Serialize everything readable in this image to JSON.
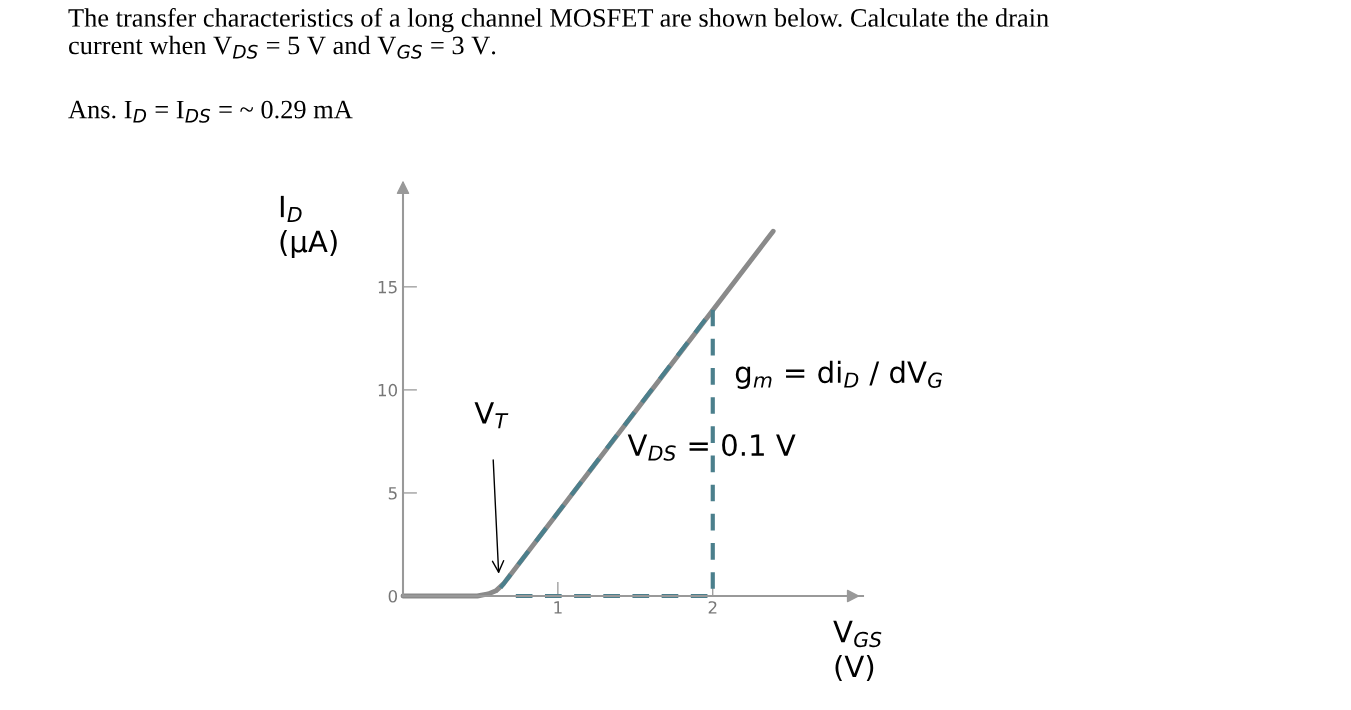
{
  "chart_data": {
    "type": "line",
    "title": "The transfer characteristics of a long channel MOSFET are shown below. Calculate the drain\ncurrent when V$_{DS}$ = 5 V and V$_{GS}$ = 3 V.",
    "subtitle": "Ans. I$_{D}$ = I$_{DS}$ = ~ 0.29 mA",
    "xlabel": "V$_{GS}$\n(V)",
    "ylabel": "I$_{D}$\n(μA)",
    "series": [
      {
        "color": "#8a8a8a",
        "x": [
          0,
          0.48,
          0.55,
          0.6,
          0.65,
          2.39
        ],
        "values": [
          0,
          0,
          0.1,
          0.25,
          0.6,
          17.7
        ],
        "line_style": "solid"
      },
      {
        "color": "#4b7f8c",
        "x": [
          0.63,
          2,
          2,
          0.69
        ],
        "values": [
          0.4,
          13.9,
          0,
          0
        ],
        "line_style": "dashed"
      }
    ],
    "annotations": [
      "V$_{T}$",
      "g$_{m}$ = di$_{D}$ / dV$_{G}$",
      "V$_{DS}$ = 0.1 V"
    ],
    "xlim": [
      0,
      2.97
    ],
    "ylim": [
      0,
      19.7
    ],
    "xticks": [
      1,
      2
    ],
    "yticks": [
      0,
      5,
      10,
      15
    ],
    "grid": false
  }
}
